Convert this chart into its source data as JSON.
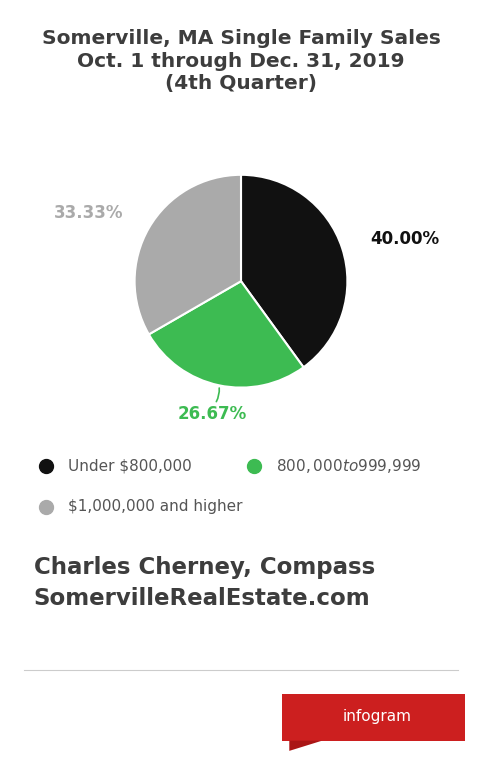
{
  "title_line1": "Somerville, MA Single Family Sales",
  "title_line2": "Oct. 1 through Dec. 31, 2019",
  "title_line3": "(4th Quarter)",
  "slices": [
    40.0,
    26.67,
    33.33
  ],
  "slice_colors": [
    "#111111",
    "#3dbb52",
    "#aaaaaa"
  ],
  "legend_labels": [
    "Under $800,000",
    "$800,000 to $999,999",
    "$1,000,000 and higher"
  ],
  "legend_colors": [
    "#111111",
    "#3dbb52",
    "#aaaaaa"
  ],
  "footer_line1": "Charles Cherney, Compass",
  "footer_line2": "SomervilleRealEstate.com",
  "bg_color": "#ffffff",
  "title_color": "#3d3d3d",
  "footer_color": "#3d3d3d",
  "legend_text_color": "#555555"
}
